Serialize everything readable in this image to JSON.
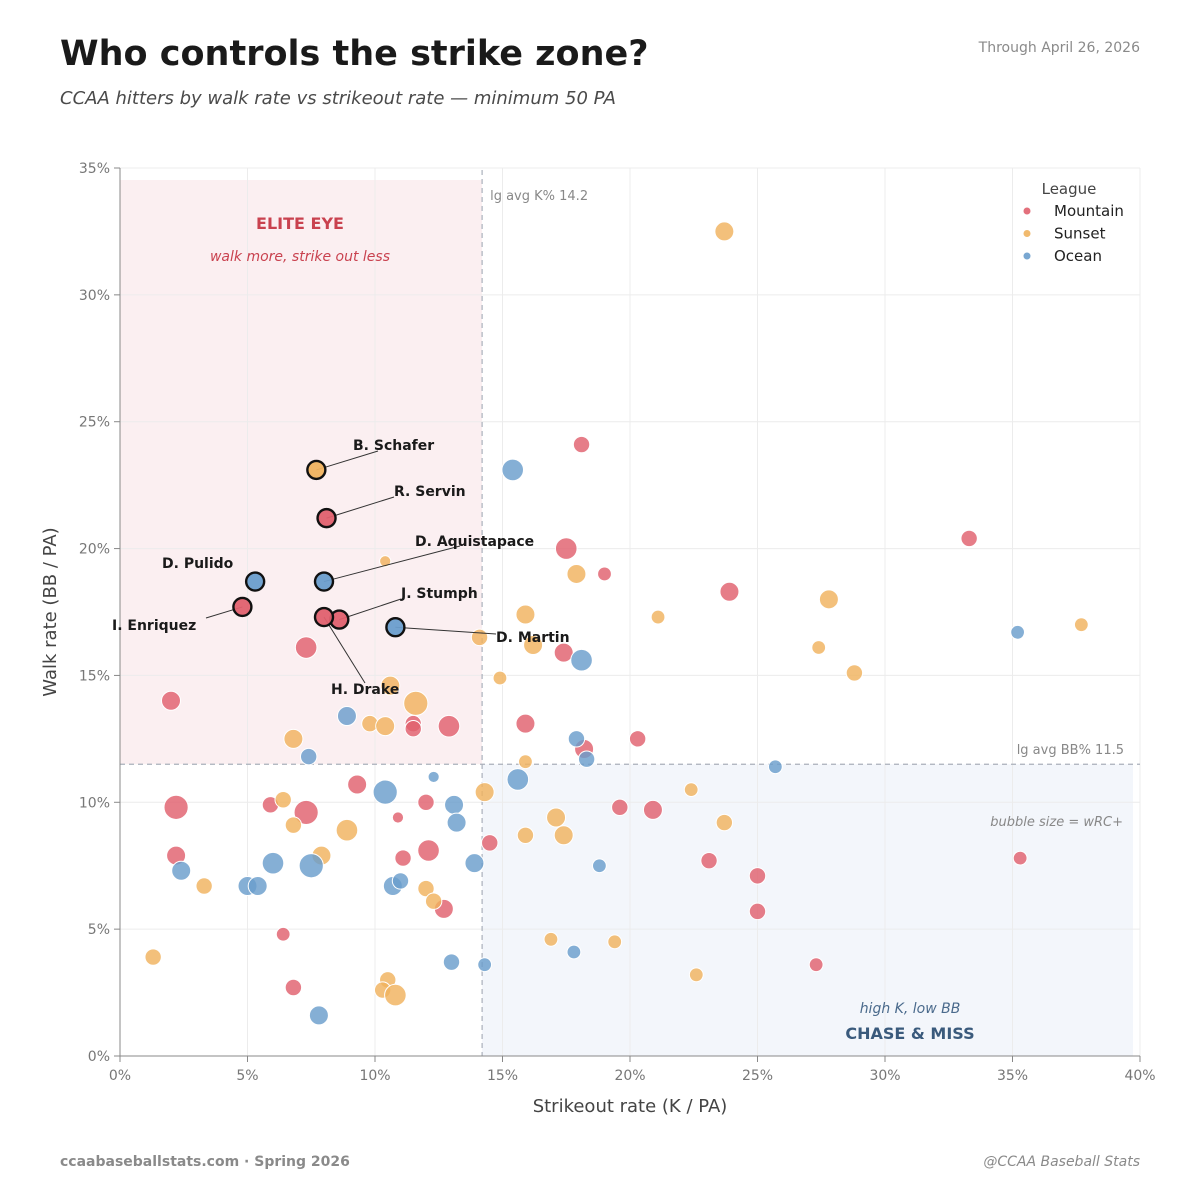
{
  "header": {
    "title": "Who controls the strike zone?",
    "subtitle": "CCAA hitters by walk rate vs strikeout rate — minimum 50 PA",
    "date": "Through April 26, 2026"
  },
  "footer": {
    "left": "ccaabaseballstats.com  ·  Spring 2026",
    "right": "@CCAA Baseball Stats"
  },
  "chart_data": {
    "type": "scatter",
    "title": "Who controls the strike zone?",
    "xlabel": "Strikeout rate  (K / PA)",
    "ylabel": "Walk rate  (BB / PA)",
    "xlim": [
      0,
      40
    ],
    "ylim": [
      0,
      35
    ],
    "xticks": [
      "0%",
      "5%",
      "10%",
      "15%",
      "20%",
      "25%",
      "30%",
      "35%",
      "40%"
    ],
    "yticks": [
      "0%",
      "5%",
      "10%",
      "15%",
      "20%",
      "25%",
      "30%",
      "35%"
    ],
    "grid": true,
    "reference_lines": {
      "lg_avg_k": 14.2,
      "lg_avg_k_label": "lg avg K%  14.2",
      "lg_avg_bb": 11.5,
      "lg_avg_bb_label": "lg avg BB%  11.5"
    },
    "quadrants": {
      "elite_title": "ELITE EYE",
      "elite_sub": "walk more, strike out less",
      "chase_title": "CHASE & MISS",
      "chase_sub": "high K, low BB"
    },
    "size_note": "bubble size = wRC+",
    "legend": {
      "title": "League",
      "position": "top-right",
      "entries": [
        "Mountain",
        "Sunset",
        "Ocean"
      ]
    },
    "colors": {
      "Mountain": "#e0606e",
      "Sunset": "#f0b25e",
      "Ocean": "#6a9dcc"
    },
    "series": [
      {
        "name": "Mountain",
        "points": [
          {
            "x": 18.1,
            "y": 24.1,
            "s": 4
          },
          {
            "x": 17.5,
            "y": 20.0,
            "s": 6
          },
          {
            "x": 19.0,
            "y": 19.0,
            "s": 3
          },
          {
            "x": 23.9,
            "y": 18.3,
            "s": 5
          },
          {
            "x": 33.3,
            "y": 20.4,
            "s": 4
          },
          {
            "x": 7.3,
            "y": 16.1,
            "s": 6
          },
          {
            "x": 17.4,
            "y": 15.9,
            "s": 5
          },
          {
            "x": 2.0,
            "y": 14.0,
            "s": 5
          },
          {
            "x": 11.5,
            "y": 13.1,
            "s": 4
          },
          {
            "x": 11.5,
            "y": 12.9,
            "s": 4
          },
          {
            "x": 12.9,
            "y": 13.0,
            "s": 6
          },
          {
            "x": 15.9,
            "y": 13.1,
            "s": 5
          },
          {
            "x": 18.2,
            "y": 12.1,
            "s": 5
          },
          {
            "x": 20.3,
            "y": 12.5,
            "s": 4
          },
          {
            "x": 2.2,
            "y": 9.8,
            "s": 7
          },
          {
            "x": 5.9,
            "y": 9.9,
            "s": 4
          },
          {
            "x": 7.3,
            "y": 9.6,
            "s": 7
          },
          {
            "x": 9.3,
            "y": 10.7,
            "s": 5
          },
          {
            "x": 12.0,
            "y": 10.0,
            "s": 4
          },
          {
            "x": 10.9,
            "y": 9.4,
            "s": 2
          },
          {
            "x": 19.6,
            "y": 9.8,
            "s": 4
          },
          {
            "x": 20.9,
            "y": 9.7,
            "s": 5
          },
          {
            "x": 2.2,
            "y": 7.9,
            "s": 5
          },
          {
            "x": 11.1,
            "y": 7.8,
            "s": 4
          },
          {
            "x": 12.1,
            "y": 8.1,
            "s": 6
          },
          {
            "x": 14.5,
            "y": 8.4,
            "s": 4
          },
          {
            "x": 23.1,
            "y": 7.7,
            "s": 4
          },
          {
            "x": 25.0,
            "y": 7.1,
            "s": 4
          },
          {
            "x": 35.3,
            "y": 7.8,
            "s": 3
          },
          {
            "x": 12.7,
            "y": 5.8,
            "s": 5
          },
          {
            "x": 25.0,
            "y": 5.7,
            "s": 4
          },
          {
            "x": 6.4,
            "y": 4.8,
            "s": 3
          },
          {
            "x": 27.3,
            "y": 3.6,
            "s": 3
          },
          {
            "x": 6.8,
            "y": 2.7,
            "s": 4
          }
        ]
      },
      {
        "name": "Sunset",
        "points": [
          {
            "x": 23.7,
            "y": 32.5,
            "s": 5
          },
          {
            "x": 10.4,
            "y": 19.5,
            "s": 2
          },
          {
            "x": 17.9,
            "y": 19.0,
            "s": 5
          },
          {
            "x": 27.8,
            "y": 18.0,
            "s": 5
          },
          {
            "x": 15.9,
            "y": 17.4,
            "s": 5
          },
          {
            "x": 21.1,
            "y": 17.3,
            "s": 3
          },
          {
            "x": 14.1,
            "y": 16.5,
            "s": 4
          },
          {
            "x": 16.2,
            "y": 16.2,
            "s": 5
          },
          {
            "x": 27.4,
            "y": 16.1,
            "s": 3
          },
          {
            "x": 37.7,
            "y": 17.0,
            "s": 3
          },
          {
            "x": 14.9,
            "y": 14.9,
            "s": 3
          },
          {
            "x": 28.8,
            "y": 15.1,
            "s": 4
          },
          {
            "x": 10.6,
            "y": 14.6,
            "s": 5
          },
          {
            "x": 11.6,
            "y": 13.9,
            "s": 7
          },
          {
            "x": 9.8,
            "y": 13.1,
            "s": 4
          },
          {
            "x": 10.4,
            "y": 13.0,
            "s": 5
          },
          {
            "x": 6.8,
            "y": 12.5,
            "s": 5
          },
          {
            "x": 15.9,
            "y": 11.6,
            "s": 3
          },
          {
            "x": 6.4,
            "y": 10.1,
            "s": 4
          },
          {
            "x": 14.3,
            "y": 10.4,
            "s": 5
          },
          {
            "x": 22.4,
            "y": 10.5,
            "s": 3
          },
          {
            "x": 6.8,
            "y": 9.1,
            "s": 4
          },
          {
            "x": 8.9,
            "y": 8.9,
            "s": 6
          },
          {
            "x": 15.9,
            "y": 8.7,
            "s": 4
          },
          {
            "x": 17.1,
            "y": 9.4,
            "s": 5
          },
          {
            "x": 17.4,
            "y": 8.7,
            "s": 5
          },
          {
            "x": 23.7,
            "y": 9.2,
            "s": 4
          },
          {
            "x": 7.9,
            "y": 7.9,
            "s": 5
          },
          {
            "x": 3.3,
            "y": 6.7,
            "s": 4
          },
          {
            "x": 12.0,
            "y": 6.6,
            "s": 4
          },
          {
            "x": 12.3,
            "y": 6.1,
            "s": 4
          },
          {
            "x": 1.3,
            "y": 3.9,
            "s": 4
          },
          {
            "x": 16.9,
            "y": 4.6,
            "s": 3
          },
          {
            "x": 19.4,
            "y": 4.5,
            "s": 3
          },
          {
            "x": 22.6,
            "y": 3.2,
            "s": 3
          },
          {
            "x": 10.5,
            "y": 3.0,
            "s": 4
          },
          {
            "x": 10.3,
            "y": 2.6,
            "s": 4
          },
          {
            "x": 10.8,
            "y": 2.4,
            "s": 6
          }
        ]
      },
      {
        "name": "Ocean",
        "points": [
          {
            "x": 15.4,
            "y": 23.1,
            "s": 6
          },
          {
            "x": 35.2,
            "y": 16.7,
            "s": 3
          },
          {
            "x": 18.1,
            "y": 15.6,
            "s": 6
          },
          {
            "x": 8.9,
            "y": 13.4,
            "s": 5
          },
          {
            "x": 17.9,
            "y": 12.5,
            "s": 4
          },
          {
            "x": 7.4,
            "y": 11.8,
            "s": 4
          },
          {
            "x": 18.3,
            "y": 11.7,
            "s": 4
          },
          {
            "x": 25.7,
            "y": 11.4,
            "s": 3
          },
          {
            "x": 15.6,
            "y": 10.9,
            "s": 6
          },
          {
            "x": 12.3,
            "y": 11.0,
            "s": 2
          },
          {
            "x": 10.4,
            "y": 10.4,
            "s": 7
          },
          {
            "x": 13.1,
            "y": 9.9,
            "s": 5
          },
          {
            "x": 13.2,
            "y": 9.2,
            "s": 5
          },
          {
            "x": 2.4,
            "y": 7.3,
            "s": 5
          },
          {
            "x": 6.0,
            "y": 7.6,
            "s": 6
          },
          {
            "x": 7.5,
            "y": 7.5,
            "s": 7
          },
          {
            "x": 13.9,
            "y": 7.6,
            "s": 5
          },
          {
            "x": 18.8,
            "y": 7.5,
            "s": 3
          },
          {
            "x": 5.0,
            "y": 6.7,
            "s": 5
          },
          {
            "x": 5.4,
            "y": 6.7,
            "s": 5
          },
          {
            "x": 10.7,
            "y": 6.7,
            "s": 5
          },
          {
            "x": 11.0,
            "y": 6.9,
            "s": 4
          },
          {
            "x": 13.0,
            "y": 3.7,
            "s": 4
          },
          {
            "x": 14.3,
            "y": 3.6,
            "s": 3
          },
          {
            "x": 17.8,
            "y": 4.1,
            "s": 3
          },
          {
            "x": 7.8,
            "y": 1.6,
            "s": 5
          }
        ]
      }
    ],
    "highlighted": [
      {
        "name": "B. Schafer",
        "league": "Sunset",
        "x": 7.7,
        "y": 23.1
      },
      {
        "name": "R. Servin",
        "league": "Mountain",
        "x": 8.1,
        "y": 21.2
      },
      {
        "name": "D. Pulido",
        "league": "Ocean",
        "x": 5.3,
        "y": 18.7
      },
      {
        "name": "D. Aquistapace",
        "league": "Ocean",
        "x": 8.0,
        "y": 18.7
      },
      {
        "name": "I. Enriquez",
        "league": "Mountain",
        "x": 4.8,
        "y": 17.7
      },
      {
        "name": "J. Stumph",
        "league": "Mountain",
        "x": 8.6,
        "y": 17.2
      },
      {
        "name": "D. Martin",
        "league": "Ocean",
        "x": 10.8,
        "y": 16.9
      },
      {
        "name": "H. Drake",
        "league": "Mountain",
        "x": 8.0,
        "y": 17.3
      }
    ]
  }
}
